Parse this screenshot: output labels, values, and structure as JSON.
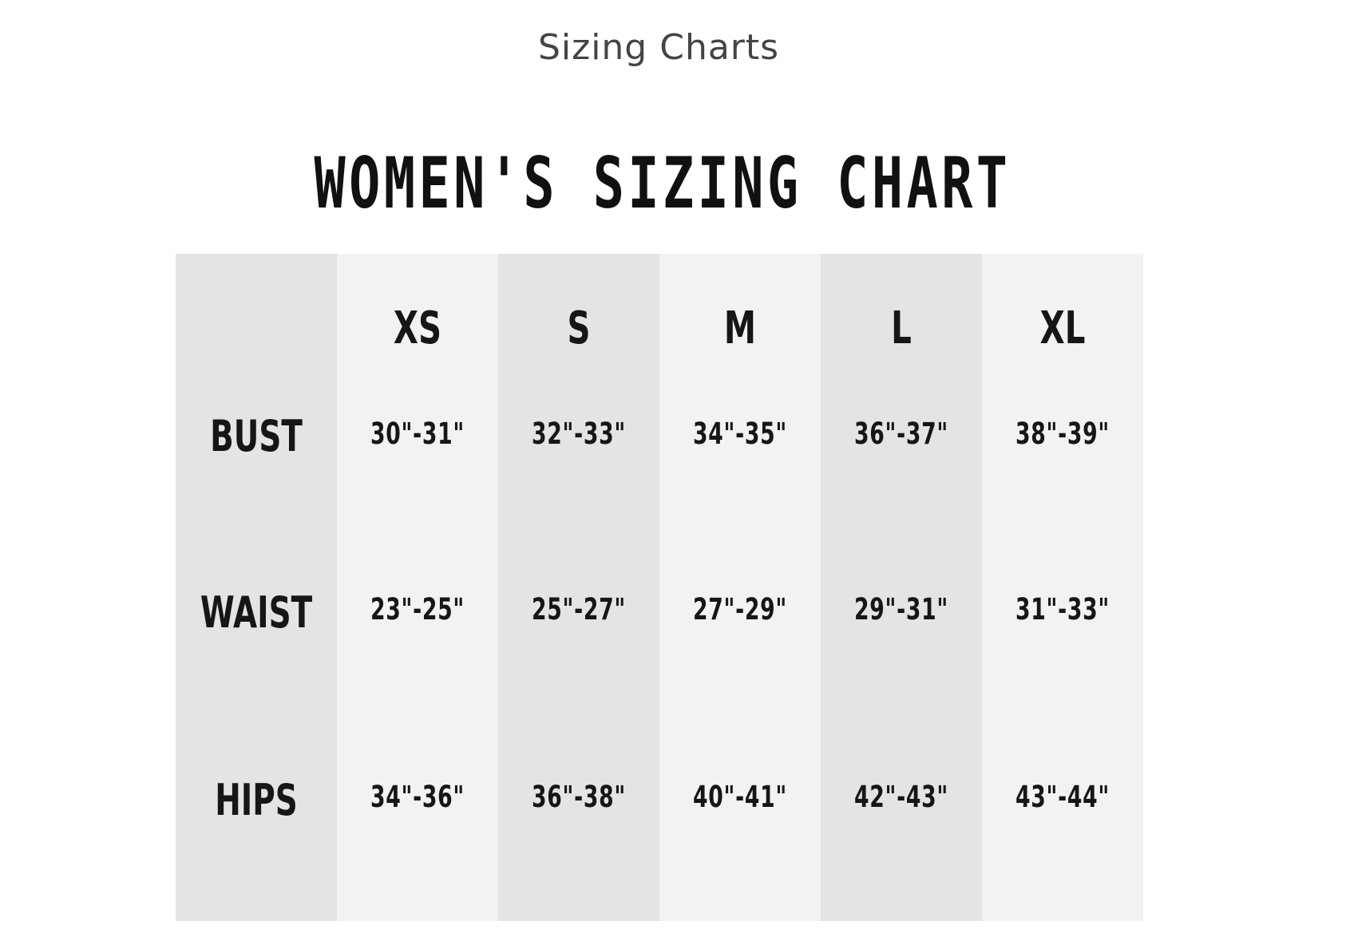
{
  "page": {
    "heading": "Sizing Charts"
  },
  "chart": {
    "title": "WOMEN'S SIZING CHART",
    "sizes": [
      "XS",
      "S",
      "M",
      "L",
      "XL"
    ],
    "rows": [
      {
        "label": "BUST",
        "values": [
          "30\"-31\"",
          "32\"-33\"",
          "34\"-35\"",
          "36\"-37\"",
          "38\"-39\""
        ]
      },
      {
        "label": "WAIST",
        "values": [
          "23\"-25\"",
          "25\"-27\"",
          "27\"-29\"",
          "29\"-31\"",
          "31\"-33\""
        ]
      },
      {
        "label": "HIPS",
        "values": [
          "34\"-36\"",
          "36\"-38\"",
          "40\"-41\"",
          "42\"-43\"",
          "43\"-44\""
        ]
      }
    ]
  },
  "colors": {
    "column_dark": "#e4e4e4",
    "column_light": "#f2f2f2",
    "text": "#161616",
    "heading_text": "#444444"
  }
}
